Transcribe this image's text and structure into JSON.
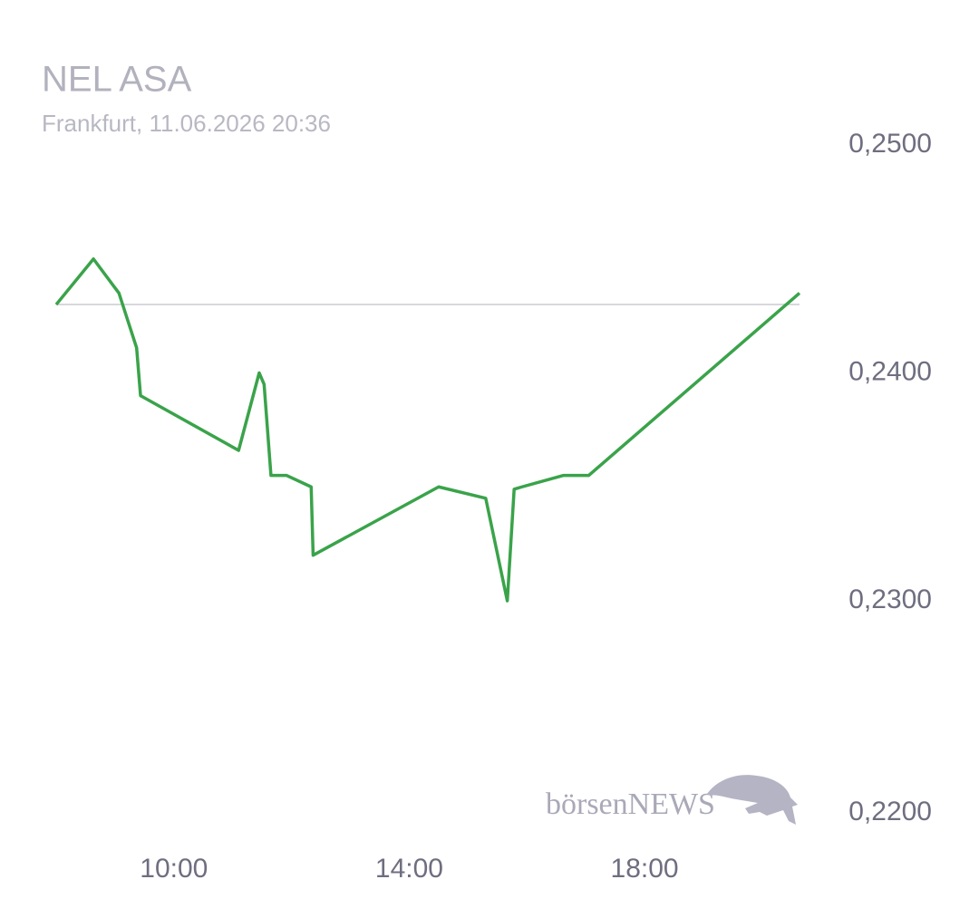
{
  "chart_data": {
    "type": "line",
    "title": "NEL ASA",
    "subtitle": "Frankfurt, 11.06.2026 20:36",
    "watermark": "börsenNEWS",
    "x": [
      480,
      518,
      544,
      562,
      566,
      666,
      687,
      692,
      699,
      715,
      740,
      742,
      870,
      918,
      940,
      947,
      955,
      997,
      1023,
      1238
    ],
    "series": [
      {
        "color": "#3aa34a",
        "values": [
          0.243,
          0.245,
          0.2435,
          0.2411,
          0.239,
          0.2366,
          0.24,
          0.2395,
          0.2355,
          0.2355,
          0.235,
          0.232,
          0.235,
          0.2345,
          0.23,
          0.2349,
          0.235,
          0.2355,
          0.2355,
          0.2435
        ]
      }
    ],
    "reference_line": 0.243,
    "xlim": [
      480,
      1238
    ],
    "xticks": [
      {
        "value": 600,
        "label": "10:00"
      },
      {
        "value": 840,
        "label": "14:00"
      },
      {
        "value": 1080,
        "label": "18:00"
      }
    ],
    "ylim": [
      0.22,
      0.25
    ],
    "yticks": [
      {
        "value": 0.25,
        "label": "0,2500"
      },
      {
        "value": 0.24,
        "label": "0,2400"
      },
      {
        "value": 0.23,
        "label": "0,2300"
      },
      {
        "value": 0.22,
        "label": "0,2200"
      }
    ]
  }
}
